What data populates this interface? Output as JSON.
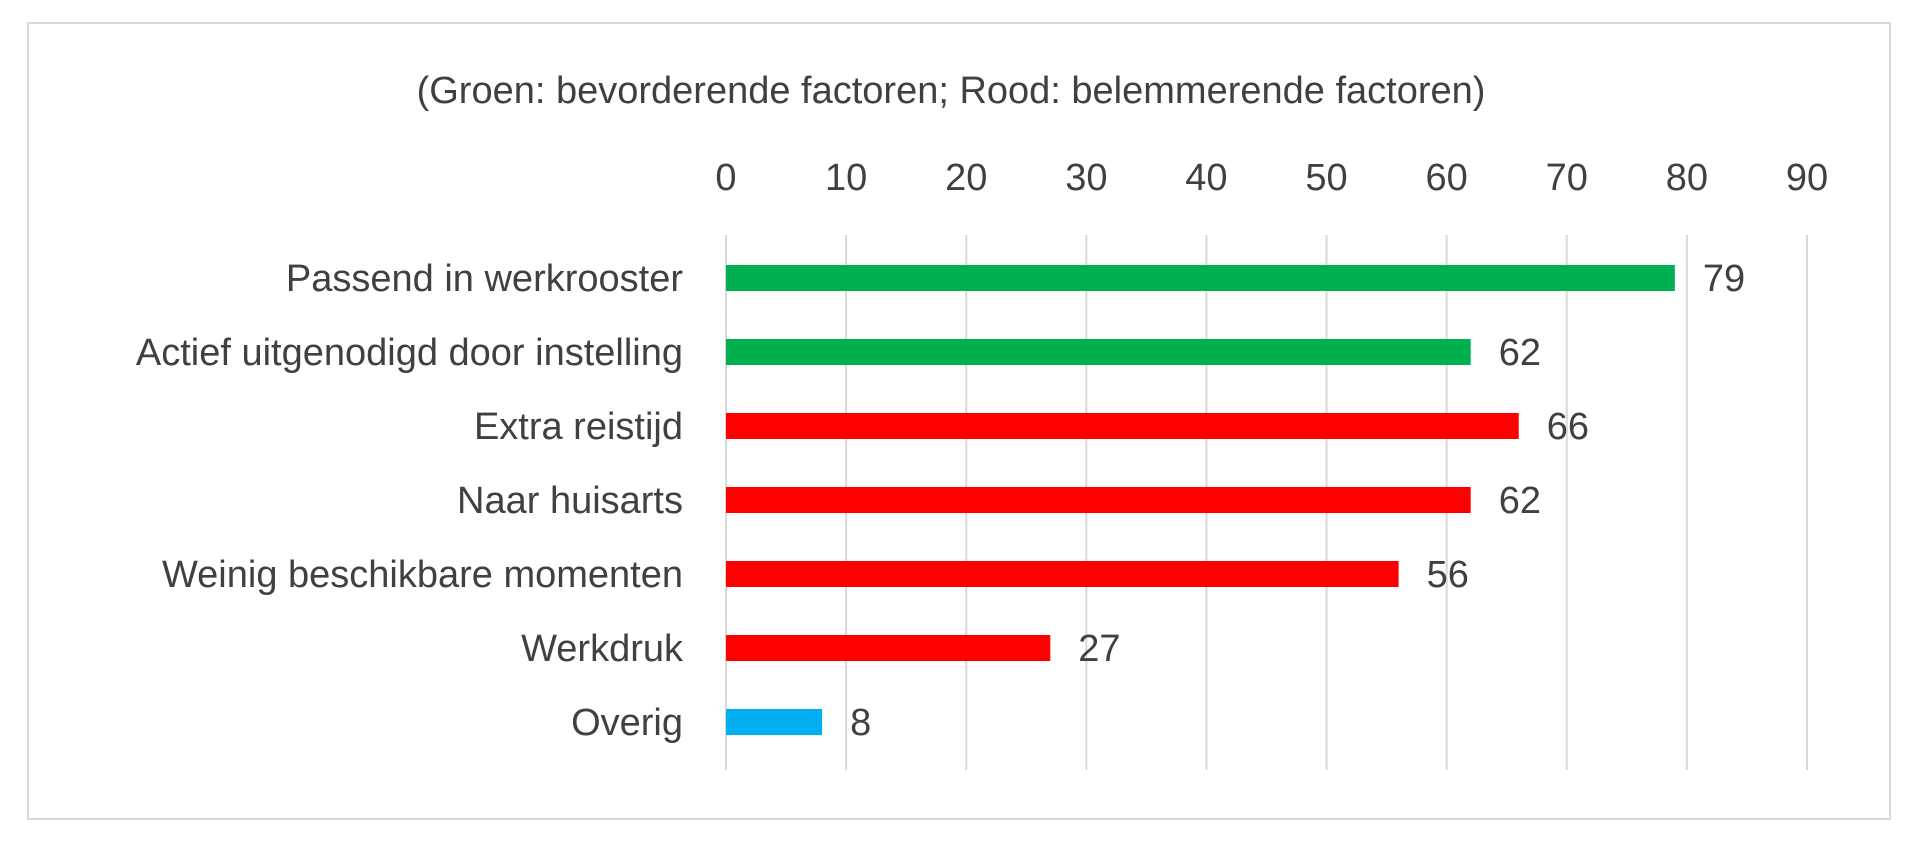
{
  "chart_data": {
    "type": "bar",
    "orientation": "horizontal",
    "subtitle": "(Groen: bevorderende factoren; Rood: belemmerende factoren)",
    "xlim": [
      0,
      90
    ],
    "x_ticks": [
      0,
      10,
      20,
      30,
      40,
      50,
      60,
      70,
      80,
      90
    ],
    "x_axis_position": "top",
    "grid": true,
    "data_labels": true,
    "categories": [
      "Passend in werkrooster",
      "Actief uitgenodigd door instelling",
      "Extra reistijd",
      "Naar huisarts",
      "Weinig beschikbare momenten",
      "Werkdruk",
      "Overig"
    ],
    "values": [
      79,
      62,
      66,
      62,
      56,
      27,
      8
    ],
    "bar_colors": [
      "#00b050",
      "#00b050",
      "#ff0000",
      "#ff0000",
      "#ff0000",
      "#ff0000",
      "#00b0f0"
    ],
    "colors": {
      "gridline": "#d9d9d9",
      "text": "#404040"
    }
  }
}
